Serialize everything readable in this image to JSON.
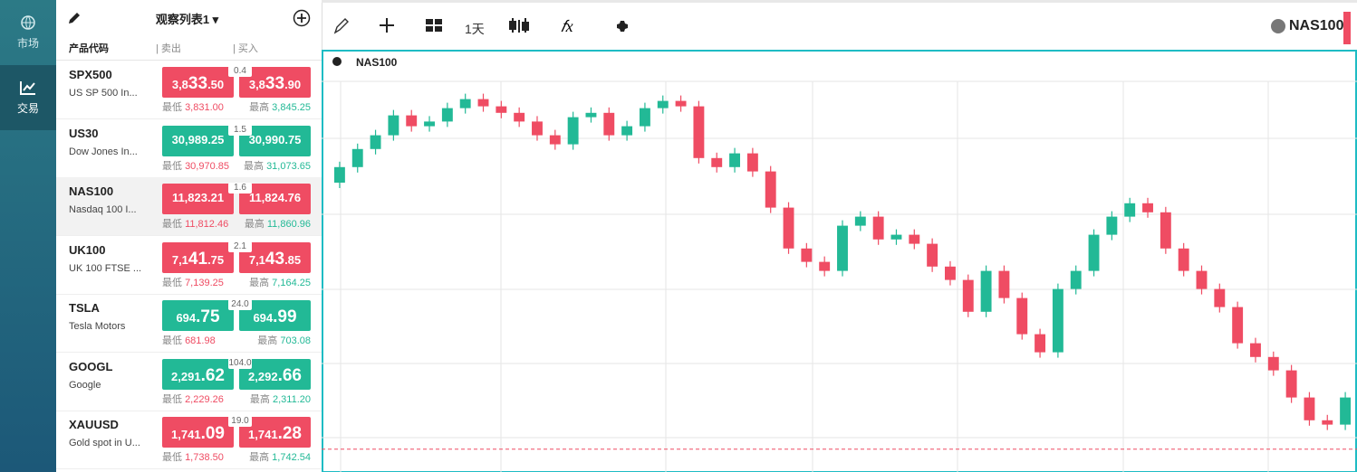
{
  "nav": {
    "items": [
      {
        "label": "市场"
      },
      {
        "label": "交易"
      }
    ]
  },
  "watchlist": {
    "title": "观察列表1",
    "columns": [
      "产品代码",
      "| 卖出",
      "| 买入"
    ],
    "low_label": "最低",
    "high_label": "最高",
    "rows": [
      {
        "symbol": "SPX500",
        "desc": "US SP 500 In...",
        "trend": "down",
        "sell": {
          "parts": [
            "3,8",
            "33",
            ".50"
          ],
          "big": 1
        },
        "buy": {
          "parts": [
            "3,8",
            "33",
            ".90"
          ],
          "big": 1
        },
        "spread": "0.4",
        "low": "3,831.00",
        "high": "3,845.25"
      },
      {
        "symbol": "US30",
        "desc": "Dow Jones In...",
        "trend": "up",
        "sell": {
          "parts": [
            "30,989",
            ".25"
          ]
        },
        "buy": {
          "parts": [
            "30,990",
            ".75"
          ]
        },
        "spread": "1.5",
        "low": "30,970.85",
        "high": "31,073.65"
      },
      {
        "symbol": "NAS100",
        "desc": "Nasdaq 100 I...",
        "trend": "down",
        "selected": true,
        "sell": {
          "parts": [
            "11,823",
            ".21"
          ]
        },
        "buy": {
          "parts": [
            "11,824",
            ".76"
          ]
        },
        "spread": "1.6",
        "low": "11,812.46",
        "high": "11,860.96"
      },
      {
        "symbol": "UK100",
        "desc": "UK 100 FTSE ...",
        "trend": "down",
        "sell": {
          "parts": [
            "7,1",
            "41",
            ".75"
          ],
          "big": 1
        },
        "buy": {
          "parts": [
            "7,1",
            "43",
            ".85"
          ],
          "big": 1
        },
        "spread": "2.1",
        "low": "7,139.25",
        "high": "7,164.25"
      },
      {
        "symbol": "TSLA",
        "desc": "Tesla Motors",
        "trend": "up",
        "sell": {
          "parts": [
            "694",
            ".75"
          ],
          "big": 1
        },
        "buy": {
          "parts": [
            "694",
            ".99"
          ],
          "big": 1
        },
        "spread": "24.0",
        "low": "681.98",
        "high": "703.08"
      },
      {
        "symbol": "GOOGL",
        "desc": "Google",
        "trend": "up",
        "sell": {
          "parts": [
            "2,291",
            ".62"
          ],
          "big": 1
        },
        "buy": {
          "parts": [
            "2,292",
            ".66"
          ],
          "big": 1
        },
        "spread": "104.0",
        "low": "2,229.26",
        "high": "2,311.20"
      },
      {
        "symbol": "XAUUSD",
        "desc": "Gold spot in U...",
        "trend": "down",
        "sell": {
          "parts": [
            "1,741",
            ".09"
          ],
          "big": 1
        },
        "buy": {
          "parts": [
            "1,741",
            ".28"
          ],
          "big": 1
        },
        "spread": "19.0",
        "low": "1,738.50",
        "high": "1,742.54"
      }
    ]
  },
  "toolbar": {
    "interval": "1天",
    "symbol": "NAS100"
  },
  "chart_data": {
    "type": "candlestick",
    "title": "NAS100",
    "ylim": [
      11760,
      12840
    ],
    "up_color": "#22b996",
    "down_color": "#ef4c63",
    "last_price": 11823.21,
    "open": [
      12560,
      12603,
      12653,
      12691,
      12746,
      12716,
      12729,
      12766,
      12791,
      12771,
      12753,
      12729,
      12691,
      12666,
      12741,
      12753,
      12691,
      12716,
      12766,
      12786,
      12771,
      12628,
      12603,
      12641,
      12591,
      12491,
      12378,
      12341,
      12316,
      12441,
      12466,
      12403,
      12416,
      12391,
      12328,
      12291,
      12203,
      12316,
      12241,
      12141,
      12091,
      12266,
      12316,
      12416,
      12466,
      12503,
      12478,
      12378,
      12316,
      12266,
      12216,
      12116,
      12078,
      12041,
      11966,
      11903,
      11891
    ],
    "high": [
      12618,
      12668,
      12706,
      12761,
      12761,
      12744,
      12781,
      12806,
      12806,
      12786,
      12768,
      12744,
      12706,
      12756,
      12768,
      12768,
      12731,
      12781,
      12801,
      12801,
      12786,
      12643,
      12656,
      12656,
      12606,
      12506,
      12393,
      12356,
      12456,
      12481,
      12481,
      12431,
      12431,
      12406,
      12343,
      12306,
      12331,
      12331,
      12256,
      12156,
      12281,
      12331,
      12431,
      12481,
      12518,
      12518,
      12493,
      12393,
      12331,
      12281,
      12231,
      12131,
      12093,
      12056,
      11981,
      11918,
      11981
    ],
    "low": [
      12545,
      12588,
      12638,
      12676,
      12701,
      12701,
      12714,
      12751,
      12756,
      12738,
      12714,
      12676,
      12651,
      12651,
      12726,
      12676,
      12676,
      12701,
      12751,
      12756,
      12613,
      12588,
      12588,
      12576,
      12476,
      12363,
      12326,
      12301,
      12301,
      12426,
      12388,
      12388,
      12376,
      12313,
      12276,
      12188,
      12188,
      12226,
      12126,
      12076,
      12076,
      12251,
      12301,
      12401,
      12451,
      12463,
      12363,
      12301,
      12251,
      12201,
      12101,
      12063,
      12026,
      11951,
      11888,
      11876,
      11876
    ],
    "close": [
      12603,
      12653,
      12691,
      12746,
      12716,
      12729,
      12766,
      12791,
      12771,
      12753,
      12729,
      12691,
      12666,
      12741,
      12753,
      12691,
      12716,
      12766,
      12786,
      12771,
      12628,
      12603,
      12641,
      12591,
      12491,
      12378,
      12341,
      12316,
      12441,
      12466,
      12403,
      12416,
      12391,
      12328,
      12291,
      12203,
      12316,
      12241,
      12141,
      12091,
      12266,
      12316,
      12416,
      12466,
      12503,
      12478,
      12378,
      12316,
      12266,
      12216,
      12116,
      12078,
      12041,
      11966,
      11903,
      11891,
      11966
    ]
  }
}
